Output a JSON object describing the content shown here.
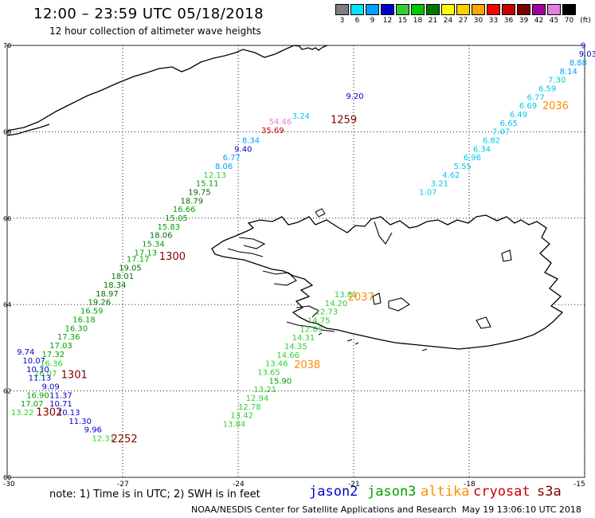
{
  "header": {
    "title": "12:00 – 23:59 UTC 05/18/2018",
    "subtitle": "12 hour collection of altimeter wave heights"
  },
  "colorbar": {
    "unit": "(ft)",
    "colors": [
      "#7f7f7f",
      "#00e5ff",
      "#00a0ff",
      "#0000cd",
      "#32cd32",
      "#00c800",
      "#007800",
      "#ffff00",
      "#ffd000",
      "#ffa500",
      "#ff0000",
      "#c80000",
      "#800000",
      "#a000a0",
      "#e080e0",
      "#000000"
    ],
    "labels": [
      "3",
      "6",
      "9",
      "12",
      "15",
      "18",
      "21",
      "24",
      "27",
      "30",
      "33",
      "36",
      "39",
      "42",
      "45",
      "70"
    ]
  },
  "map": {
    "lat_labels": [
      "70",
      "68",
      "66",
      "64",
      "62",
      "60"
    ],
    "lon_labels": [
      "-30",
      "-27",
      "-24",
      "-21",
      "-18",
      "-15"
    ],
    "land_color": "#ffffff",
    "coast_color": "#000000",
    "grid": "dotted"
  },
  "observations": [
    {
      "text": "9.20",
      "lon": -21.2,
      "lat": 68.76,
      "color": "#0000cd"
    },
    {
      "text": "3.24",
      "lon": -22.6,
      "lat": 68.3,
      "color": "#00c8e8"
    },
    {
      "text": "54.46",
      "lon": -23.2,
      "lat": 68.17,
      "color": "#e080e0"
    },
    {
      "text": "35.69",
      "lon": -23.4,
      "lat": 67.97,
      "color": "#c80000"
    },
    {
      "text": "8.34",
      "lon": -23.9,
      "lat": 67.74,
      "color": "#00a0ff"
    },
    {
      "text": "9.40",
      "lon": -24.1,
      "lat": 67.54,
      "color": "#0000cd"
    },
    {
      "text": "6.77",
      "lon": -24.4,
      "lat": 67.34,
      "color": "#00a0ff"
    },
    {
      "text": "8.06",
      "lon": -24.6,
      "lat": 67.14,
      "color": "#00a0ff"
    },
    {
      "text": "12.13",
      "lon": -24.9,
      "lat": 66.94,
      "color": "#32cd32"
    },
    {
      "text": "15.11",
      "lon": -25.1,
      "lat": 66.74,
      "color": "#00a000"
    },
    {
      "text": "19.75",
      "lon": -25.3,
      "lat": 66.54,
      "color": "#007000"
    },
    {
      "text": "18.79",
      "lon": -25.5,
      "lat": 66.34,
      "color": "#007000"
    },
    {
      "text": "16.66",
      "lon": -25.7,
      "lat": 66.14,
      "color": "#00a000"
    },
    {
      "text": "15.05",
      "lon": -25.9,
      "lat": 65.94,
      "color": "#00a000"
    },
    {
      "text": "15.83",
      "lon": -26.1,
      "lat": 65.74,
      "color": "#00a000"
    },
    {
      "text": "18.06",
      "lon": -26.3,
      "lat": 65.54,
      "color": "#007000"
    },
    {
      "text": "15.34",
      "lon": -26.5,
      "lat": 65.34,
      "color": "#00a000"
    },
    {
      "text": "17.13",
      "lon": -26.7,
      "lat": 65.14,
      "color": "#00a000"
    },
    {
      "text": "17.17",
      "lon": -26.9,
      "lat": 64.99,
      "color": "#00a000"
    },
    {
      "text": "19.05",
      "lon": -27.1,
      "lat": 64.79,
      "color": "#007000"
    },
    {
      "text": "18.01",
      "lon": -27.3,
      "lat": 64.59,
      "color": "#007000"
    },
    {
      "text": "18.34",
      "lon": -27.5,
      "lat": 64.39,
      "color": "#007000"
    },
    {
      "text": "18.97",
      "lon": -27.7,
      "lat": 64.19,
      "color": "#007000"
    },
    {
      "text": "19.26",
      "lon": -27.9,
      "lat": 63.99,
      "color": "#007000"
    },
    {
      "text": "16.59",
      "lon": -28.1,
      "lat": 63.79,
      "color": "#00a000"
    },
    {
      "text": "16.18",
      "lon": -28.3,
      "lat": 63.59,
      "color": "#00a000"
    },
    {
      "text": "16.30",
      "lon": -28.5,
      "lat": 63.39,
      "color": "#00a000"
    },
    {
      "text": "17.36",
      "lon": -28.7,
      "lat": 63.19,
      "color": "#00a000"
    },
    {
      "text": "17.03",
      "lon": -28.9,
      "lat": 62.99,
      "color": "#00a000"
    },
    {
      "text": "17.32",
      "lon": -29.1,
      "lat": 62.79,
      "color": "#00a000"
    },
    {
      "text": "9.74",
      "lon": -29.75,
      "lat": 62.84,
      "color": "#0000cd"
    },
    {
      "text": "10.07",
      "lon": -29.6,
      "lat": 62.64,
      "color": "#0000cd"
    },
    {
      "text": "16.36",
      "lon": -29.15,
      "lat": 62.57,
      "color": "#32cd32"
    },
    {
      "text": "10.30",
      "lon": -29.5,
      "lat": 62.44,
      "color": "#0000cd"
    },
    {
      "text": "16.07",
      "lon": -29.3,
      "lat": 62.34,
      "color": "#32cd32"
    },
    {
      "text": "11.13",
      "lon": -29.45,
      "lat": 62.24,
      "color": "#0000cd"
    },
    {
      "text": "9.09",
      "lon": -29.1,
      "lat": 62.04,
      "color": "#0000cd"
    },
    {
      "text": "11.37",
      "lon": -28.9,
      "lat": 61.84,
      "color": "#0000cd"
    },
    {
      "text": "16.90",
      "lon": -29.5,
      "lat": 61.84,
      "color": "#00a000"
    },
    {
      "text": "10.71",
      "lon": -28.9,
      "lat": 61.64,
      "color": "#0000cd"
    },
    {
      "text": "17.07",
      "lon": -29.65,
      "lat": 61.64,
      "color": "#00a000"
    },
    {
      "text": "13.22",
      "lon": -29.9,
      "lat": 61.44,
      "color": "#32cd32"
    },
    {
      "text": "10.13",
      "lon": -28.7,
      "lat": 61.44,
      "color": "#0000cd"
    },
    {
      "text": "11.30",
      "lon": -28.4,
      "lat": 61.24,
      "color": "#0000cd"
    },
    {
      "text": "9.96",
      "lon": -28.0,
      "lat": 61.04,
      "color": "#0000cd"
    },
    {
      "text": "12.31",
      "lon": -27.8,
      "lat": 60.84,
      "color": "#32cd32"
    },
    {
      "text": "13.81",
      "lon": -21.5,
      "lat": 64.17,
      "color": "#32cd32"
    },
    {
      "text": "14.20",
      "lon": -21.75,
      "lat": 63.97,
      "color": "#32cd32"
    },
    {
      "text": "12.73",
      "lon": -22.0,
      "lat": 63.77,
      "color": "#32cd32"
    },
    {
      "text": "14.75",
      "lon": -22.2,
      "lat": 63.57,
      "color": "#32cd32"
    },
    {
      "text": "12.89",
      "lon": -22.4,
      "lat": 63.37,
      "color": "#32cd32"
    },
    {
      "text": "14.31",
      "lon": -22.6,
      "lat": 63.17,
      "color": "#32cd32"
    },
    {
      "text": "14.35",
      "lon": -22.8,
      "lat": 62.97,
      "color": "#32cd32"
    },
    {
      "text": "14.66",
      "lon": -23.0,
      "lat": 62.77,
      "color": "#32cd32"
    },
    {
      "text": "13.46",
      "lon": -23.3,
      "lat": 62.57,
      "color": "#32cd32"
    },
    {
      "text": "13.65",
      "lon": -23.5,
      "lat": 62.37,
      "color": "#32cd32"
    },
    {
      "text": "15.90",
      "lon": -23.2,
      "lat": 62.17,
      "color": "#00a000"
    },
    {
      "text": "13.21",
      "lon": -23.6,
      "lat": 61.97,
      "color": "#32cd32"
    },
    {
      "text": "12.94",
      "lon": -23.8,
      "lat": 61.77,
      "color": "#32cd32"
    },
    {
      "text": "12.78",
      "lon": -24.0,
      "lat": 61.57,
      "color": "#32cd32"
    },
    {
      "text": "13.42",
      "lon": -24.2,
      "lat": 61.37,
      "color": "#32cd32"
    },
    {
      "text": "13.84",
      "lon": -24.4,
      "lat": 61.17,
      "color": "#32cd32"
    },
    {
      "text": "9",
      "lon": -15.1,
      "lat": 69.94,
      "color": "#0000cd"
    },
    {
      "text": "9.03",
      "lon": -15.15,
      "lat": 69.74,
      "color": "#0000cd"
    },
    {
      "text": "8.88",
      "lon": -15.4,
      "lat": 69.54,
      "color": "#00a0ff"
    },
    {
      "text": "8.14",
      "lon": -15.65,
      "lat": 69.34,
      "color": "#00a0ff"
    },
    {
      "text": "7.30",
      "lon": -15.95,
      "lat": 69.14,
      "color": "#00c8e8"
    },
    {
      "text": "6.59",
      "lon": -16.2,
      "lat": 68.94,
      "color": "#00c8e8"
    },
    {
      "text": "6.77",
      "lon": -16.5,
      "lat": 68.74,
      "color": "#00c8e8"
    },
    {
      "text": "6.69",
      "lon": -16.7,
      "lat": 68.54,
      "color": "#00c8e8"
    },
    {
      "text": "6.49",
      "lon": -16.95,
      "lat": 68.34,
      "color": "#00c8e8"
    },
    {
      "text": "6.65",
      "lon": -17.2,
      "lat": 68.14,
      "color": "#00c8e8"
    },
    {
      "text": "7.07",
      "lon": -17.4,
      "lat": 67.94,
      "color": "#00c8e8"
    },
    {
      "text": "6.82",
      "lon": -17.65,
      "lat": 67.74,
      "color": "#00c8e8"
    },
    {
      "text": "6.34",
      "lon": -17.9,
      "lat": 67.54,
      "color": "#00c8e8"
    },
    {
      "text": "6.96",
      "lon": -18.15,
      "lat": 67.34,
      "color": "#00c8e8"
    },
    {
      "text": "5.55",
      "lon": -18.4,
      "lat": 67.14,
      "color": "#00c8e8"
    },
    {
      "text": "4.62",
      "lon": -18.7,
      "lat": 66.94,
      "color": "#00c8e8"
    },
    {
      "text": "3.21",
      "lon": -19.0,
      "lat": 66.74,
      "color": "#00c8e8"
    },
    {
      "text": "1.07",
      "lon": -19.3,
      "lat": 66.54,
      "color": "#00c8e8"
    }
  ],
  "time_labels": [
    {
      "text": "1259",
      "lon": -21.6,
      "lat": 68.2,
      "color": "#800000"
    },
    {
      "text": "1300",
      "lon": -26.05,
      "lat": 65.04,
      "color": "#800000"
    },
    {
      "text": "1301",
      "lon": -28.6,
      "lat": 62.3,
      "color": "#800000"
    },
    {
      "text": "1302",
      "lon": -29.25,
      "lat": 61.43,
      "color": "#800000"
    },
    {
      "text": "2252",
      "lon": -27.3,
      "lat": 60.81,
      "color": "#800000"
    },
    {
      "text": "2036",
      "lon": -16.1,
      "lat": 68.52,
      "color": "#ff8c00"
    },
    {
      "text": "2037",
      "lon": -21.15,
      "lat": 64.1,
      "color": "#ff8c00"
    },
    {
      "text": "2038",
      "lon": -22.55,
      "lat": 62.53,
      "color": "#ff8c00"
    }
  ],
  "footer": {
    "note": "note: 1) Time is in UTC; 2) SWH is in feet",
    "sat_jason2": "jason2",
    "sat_jason3": "jason3",
    "sat_altika": "altika",
    "sat_cryosat": "cryosat",
    "sat_s3a": "s3a",
    "sat_jason2_color": "#0000cd",
    "sat_jason3_color": "#00a000",
    "sat_altika_color": "#ff8c00",
    "sat_cryosat_color": "#c80000",
    "sat_s3a_color": "#800000",
    "credit": "NOAA/NESDIS Center for Satellite Applications and Research",
    "timestamp": "May 19 13:06:10 UTC 2018"
  }
}
